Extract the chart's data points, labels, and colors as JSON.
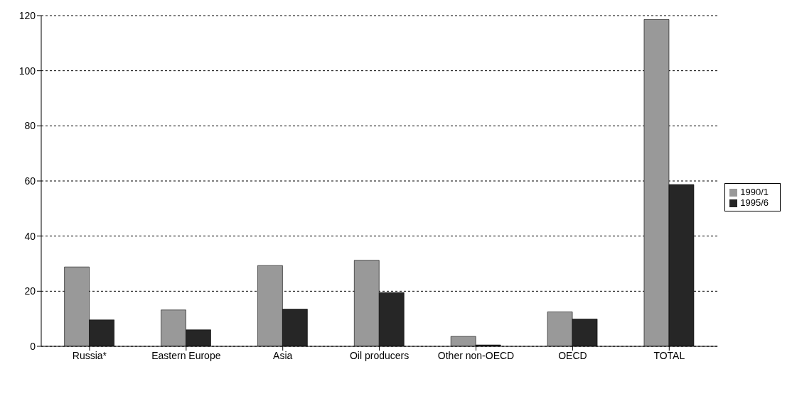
{
  "chart_data": {
    "type": "bar",
    "categories": [
      "Russia*",
      "Eastern Europe",
      "Asia",
      "Oil producers",
      "Other non-OECD",
      "OECD",
      "TOTAL"
    ],
    "series": [
      {
        "name": "1990/1",
        "color": "#999999",
        "values": [
          28.8,
          13.2,
          29.3,
          31.2,
          3.6,
          12.5,
          118.6
        ]
      },
      {
        "name": "1995/6",
        "color": "#262626",
        "values": [
          9.6,
          6,
          13.5,
          19.5,
          0.5,
          9.9,
          58.7
        ]
      }
    ],
    "ylim": [
      0,
      120
    ],
    "yticks": [
      0,
      20,
      40,
      60,
      80,
      100,
      120
    ],
    "grid": "y",
    "legend": "right"
  }
}
